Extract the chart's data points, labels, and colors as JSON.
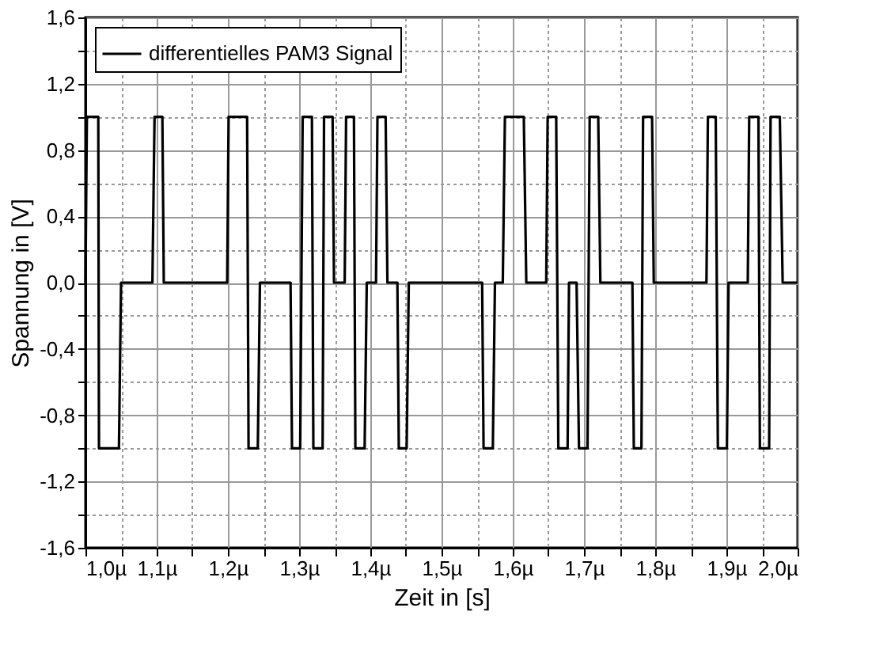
{
  "chart_data": {
    "type": "line",
    "xlabel": "Zeit in [s]",
    "ylabel": "Spannung in [V]",
    "series": [
      {
        "name": "differentielles PAM3 Signal",
        "color": "#000000",
        "line_style": "solid",
        "x": [
          1.0,
          1.002,
          1.018,
          1.019,
          1.047,
          1.05,
          1.094,
          1.097,
          1.108,
          1.11,
          1.199,
          1.201,
          1.227,
          1.229,
          1.242,
          1.245,
          1.288,
          1.29,
          1.3015,
          1.305,
          1.318,
          1.32,
          1.333,
          1.335,
          1.347,
          1.349,
          1.364,
          1.366,
          1.377,
          1.379,
          1.392,
          1.395,
          1.408,
          1.41,
          1.4215,
          1.424,
          1.438,
          1.44,
          1.451,
          1.454,
          1.557,
          1.559,
          1.572,
          1.575,
          1.586,
          1.589,
          1.6155,
          1.619,
          1.647,
          1.649,
          1.661,
          1.664,
          1.677,
          1.679,
          1.6896,
          1.693,
          1.705,
          1.708,
          1.72,
          1.723,
          1.768,
          1.77,
          1.7807,
          1.783,
          1.7956,
          1.798,
          1.872,
          1.874,
          1.885,
          1.888,
          1.9007,
          1.903,
          1.93,
          1.932,
          1.945,
          1.947,
          1.96,
          1.962,
          1.975,
          1.979,
          2.0
        ],
        "values": [
          0,
          1,
          1,
          -1,
          -1,
          0,
          0,
          1,
          1,
          0,
          0,
          1,
          1,
          -1,
          -1,
          0,
          0,
          -1,
          -1,
          1,
          1,
          -1,
          -1,
          1,
          1,
          0,
          0,
          1,
          1,
          -1,
          -1,
          0,
          0,
          1,
          1,
          0,
          0,
          -1,
          -1,
          0,
          0,
          -1,
          -1,
          0,
          0,
          1,
          1,
          0,
          0,
          1,
          1,
          -1,
          -1,
          0,
          0,
          -1,
          -1,
          1,
          1,
          0,
          0,
          -1,
          -1,
          1,
          1,
          0,
          0,
          1,
          1,
          -1,
          -1,
          0,
          0,
          1,
          1,
          -1,
          -1,
          1,
          1,
          0,
          0
        ]
      }
    ],
    "xlim": [
      1.0,
      2.0
    ],
    "xticks": [
      {
        "value": 1.0,
        "label": "1,0µ"
      },
      {
        "value": 1.05,
        "label": null
      },
      {
        "value": 1.1,
        "label": "1,1µ"
      },
      {
        "value": 1.15,
        "label": null
      },
      {
        "value": 1.2,
        "label": "1,2µ"
      },
      {
        "value": 1.25,
        "label": null
      },
      {
        "value": 1.3,
        "label": "1,3µ"
      },
      {
        "value": 1.35,
        "label": null
      },
      {
        "value": 1.4,
        "label": "1,4µ"
      },
      {
        "value": 1.45,
        "label": null
      },
      {
        "value": 1.5,
        "label": "1,5µ"
      },
      {
        "value": 1.55,
        "label": null
      },
      {
        "value": 1.6,
        "label": "1,6µ"
      },
      {
        "value": 1.65,
        "label": null
      },
      {
        "value": 1.7,
        "label": "1,7µ"
      },
      {
        "value": 1.75,
        "label": null
      },
      {
        "value": 1.8,
        "label": "1,8µ"
      },
      {
        "value": 1.85,
        "label": null
      },
      {
        "value": 1.9,
        "label": "1,9µ"
      },
      {
        "value": 1.95,
        "label": null
      },
      {
        "value": 2.0,
        "label": "2,0µ"
      }
    ],
    "ylim": [
      -1.6,
      1.6
    ],
    "yticks": [
      {
        "value": -1.6,
        "label": "-1,6"
      },
      {
        "value": -1.4,
        "label": null
      },
      {
        "value": -1.2,
        "label": "-1,2"
      },
      {
        "value": -1.0,
        "label": null
      },
      {
        "value": -0.8,
        "label": "-0,8"
      },
      {
        "value": -0.6,
        "label": null
      },
      {
        "value": -0.4,
        "label": "-0,4"
      },
      {
        "value": -0.2,
        "label": null
      },
      {
        "value": 0.0,
        "label": "0,0"
      },
      {
        "value": 0.2,
        "label": null
      },
      {
        "value": 0.4,
        "label": "0,4"
      },
      {
        "value": 0.6,
        "label": null
      },
      {
        "value": 0.8,
        "label": "0,8"
      },
      {
        "value": 1.0,
        "label": null
      },
      {
        "value": 1.2,
        "label": "1,2"
      },
      {
        "value": 1.4,
        "label": null
      },
      {
        "value": 1.6,
        "label": "1,6"
      }
    ],
    "grid": true,
    "legend": "top left",
    "marker": "none"
  }
}
